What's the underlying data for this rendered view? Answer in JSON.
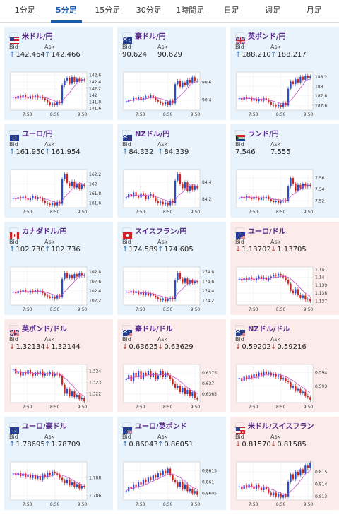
{
  "tabs": [
    {
      "label": "1分足",
      "active": false
    },
    {
      "label": "5分足",
      "active": true
    },
    {
      "label": "15分足",
      "active": false
    },
    {
      "label": "30分足",
      "active": false
    },
    {
      "label": "1時間足",
      "active": false
    },
    {
      "label": "日足",
      "active": false
    },
    {
      "label": "週足",
      "active": false
    },
    {
      "label": "月足",
      "active": false
    }
  ],
  "labels": {
    "bid": "Bid",
    "ask": "Ask"
  },
  "colors": {
    "up_bg": "#e9f3fb",
    "down_bg": "#fbeceb",
    "candle_up": "#2b4cc9",
    "candle_down": "#d1221f",
    "ma": "#c94fcb",
    "link": "#5a2a8a"
  },
  "pairs": [
    {
      "name": "米ドル/円",
      "flag": "us",
      "dir": "up",
      "bid": "142.464",
      "ask": "142.466",
      "bid_arrow": "up",
      "ask_arrow": "up",
      "chart_data": {
        "type": "candlestick",
        "x_ticks": [
          "7:50",
          "8:50",
          "9:50"
        ],
        "y_ticks": [
          "142.6",
          "142.4",
          "142.2",
          "142",
          "141.8",
          "141.6"
        ],
        "ylim": [
          141.55,
          142.7
        ],
        "closes": [
          141.95,
          141.9,
          141.98,
          141.92,
          142.0,
          141.94,
          141.9,
          141.97,
          141.93,
          141.99,
          141.92,
          141.96,
          141.91,
          141.85,
          141.78,
          141.72,
          141.75,
          141.7,
          141.8,
          141.76,
          142.3,
          142.45,
          142.52,
          142.35,
          142.55,
          142.4,
          142.5,
          142.44,
          142.48,
          142.46
        ]
      }
    },
    {
      "name": "豪ドル/円",
      "flag": "au",
      "dir": "up",
      "bid": "90.624",
      "ask": "90.629",
      "bid_arrow": "none",
      "ask_arrow": "none",
      "chart_data": {
        "type": "candlestick",
        "x_ticks": [
          "7:50",
          "8:50",
          "9:50"
        ],
        "y_ticks": [
          "90.6",
          "90.4"
        ],
        "ylim": [
          90.28,
          90.72
        ],
        "closes": [
          90.38,
          90.4,
          90.39,
          90.42,
          90.41,
          90.43,
          90.4,
          90.42,
          90.44,
          90.43,
          90.45,
          90.42,
          90.4,
          90.38,
          90.36,
          90.35,
          90.37,
          90.34,
          90.39,
          90.36,
          90.58,
          90.62,
          90.55,
          90.6,
          90.57,
          90.63,
          90.6,
          90.66,
          90.62,
          90.62
        ]
      }
    },
    {
      "name": "英ポンド/円",
      "flag": "gb",
      "dir": "up",
      "bid": "188.210",
      "ask": "188.217",
      "bid_arrow": "up",
      "ask_arrow": "up",
      "chart_data": {
        "type": "candlestick",
        "x_ticks": [
          "7:50",
          "8:50",
          "9:50"
        ],
        "y_ticks": [
          "188.2",
          "188",
          "187.8",
          "187.6"
        ],
        "ylim": [
          187.5,
          188.3
        ],
        "closes": [
          187.75,
          187.72,
          187.78,
          187.74,
          187.76,
          187.7,
          187.74,
          187.69,
          187.73,
          187.7,
          187.75,
          187.71,
          187.68,
          187.62,
          187.6,
          187.58,
          187.61,
          187.57,
          187.65,
          187.6,
          187.95,
          188.1,
          188.05,
          188.15,
          188.08,
          188.2,
          188.14,
          188.22,
          188.18,
          188.21
        ]
      }
    },
    {
      "name": "ユーロ/円",
      "flag": "eu",
      "dir": "up",
      "bid": "161.950",
      "ask": "161.954",
      "bid_arrow": "up",
      "ask_arrow": "up",
      "chart_data": {
        "type": "candlestick",
        "x_ticks": [
          "7:50",
          "8:50",
          "9:50"
        ],
        "y_ticks": [
          "162.2",
          "162",
          "161.8",
          "161.6"
        ],
        "ylim": [
          161.5,
          162.3
        ],
        "closes": [
          161.7,
          161.68,
          161.72,
          161.69,
          161.73,
          161.7,
          161.66,
          161.7,
          161.74,
          161.68,
          161.72,
          161.69,
          161.65,
          161.6,
          161.58,
          161.56,
          161.6,
          161.55,
          161.62,
          161.58,
          162.1,
          162.2,
          162.02,
          161.95,
          162.05,
          161.92,
          162.0,
          161.9,
          161.98,
          161.95
        ]
      }
    },
    {
      "name": "NZドル/円",
      "flag": "nz",
      "dir": "up",
      "bid": "84.332",
      "ask": "84.339",
      "bid_arrow": "up",
      "ask_arrow": "up",
      "chart_data": {
        "type": "candlestick",
        "x_ticks": [
          "7:50",
          "8:50",
          "9:50"
        ],
        "y_ticks": [
          "84.4",
          "84.2"
        ],
        "ylim": [
          84.1,
          84.55
        ],
        "closes": [
          84.22,
          84.26,
          84.23,
          84.28,
          84.24,
          84.22,
          84.27,
          84.25,
          84.2,
          84.24,
          84.26,
          84.22,
          84.18,
          84.15,
          84.17,
          84.14,
          84.16,
          84.13,
          84.18,
          84.15,
          84.42,
          84.5,
          84.38,
          84.33,
          84.4,
          84.3,
          84.36,
          84.31,
          84.35,
          84.33
        ]
      }
    },
    {
      "name": "ランド/円",
      "flag": "za",
      "dir": "up",
      "bid": "7.546",
      "ask": "7.555",
      "bid_arrow": "none",
      "ask_arrow": "none",
      "chart_data": {
        "type": "candlestick",
        "x_ticks": [
          "7:50",
          "8:50",
          "9:50"
        ],
        "y_ticks": [
          "7.56",
          "7.54",
          "7.52"
        ],
        "ylim": [
          7.508,
          7.575
        ],
        "closes": [
          7.525,
          7.527,
          7.524,
          7.528,
          7.526,
          7.523,
          7.527,
          7.525,
          7.522,
          7.526,
          7.524,
          7.527,
          7.523,
          7.52,
          7.518,
          7.52,
          7.517,
          7.519,
          7.521,
          7.52,
          7.545,
          7.56,
          7.55,
          7.538,
          7.548,
          7.542,
          7.55,
          7.545,
          7.548,
          7.546
        ]
      }
    },
    {
      "name": "カナダドル/円",
      "flag": "ca",
      "dir": "up",
      "bid": "102.730",
      "ask": "102.736",
      "bid_arrow": "up",
      "ask_arrow": "up",
      "chart_data": {
        "type": "candlestick",
        "x_ticks": [
          "7:50",
          "8:50",
          "9:50"
        ],
        "y_ticks": [
          "102.8",
          "102.6",
          "102.4",
          "102.2"
        ],
        "ylim": [
          102.1,
          102.9
        ],
        "closes": [
          102.38,
          102.35,
          102.4,
          102.37,
          102.42,
          102.39,
          102.36,
          102.4,
          102.38,
          102.41,
          102.37,
          102.4,
          102.35,
          102.3,
          102.28,
          102.25,
          102.28,
          102.24,
          102.3,
          102.27,
          102.65,
          102.78,
          102.68,
          102.72,
          102.66,
          102.75,
          102.7,
          102.77,
          102.72,
          102.73
        ]
      }
    },
    {
      "name": "スイスフラン/円",
      "flag": "ch",
      "dir": "up",
      "bid": "174.589",
      "ask": "174.605",
      "bid_arrow": "up",
      "ask_arrow": "up",
      "chart_data": {
        "type": "candlestick",
        "x_ticks": [
          "7:50",
          "8:50",
          "9:50"
        ],
        "y_ticks": [
          "174.8",
          "174.6",
          "174.4",
          "174.2"
        ],
        "ylim": [
          174.1,
          174.9
        ],
        "closes": [
          174.38,
          174.36,
          174.4,
          174.35,
          174.39,
          174.33,
          174.37,
          174.32,
          174.36,
          174.3,
          174.34,
          174.3,
          174.26,
          174.22,
          174.2,
          174.24,
          174.19,
          174.22,
          174.25,
          174.22,
          174.62,
          174.78,
          174.65,
          174.58,
          174.66,
          174.55,
          174.62,
          174.56,
          174.6,
          174.59
        ]
      }
    },
    {
      "name": "ユーロ/ドル",
      "flag": "eu-us",
      "dir": "down",
      "bid": "1.13702",
      "ask": "1.13705",
      "bid_arrow": "down",
      "ask_arrow": "down",
      "chart_data": {
        "type": "candlestick",
        "x_ticks": [
          "7:50",
          "8:50",
          "9:50"
        ],
        "y_ticks": [
          "1.141",
          "1.14",
          "1.139",
          "1.138",
          "1.137"
        ],
        "ylim": [
          1.1365,
          1.1413
        ],
        "closes": [
          1.1398,
          1.1396,
          1.1399,
          1.1397,
          1.14,
          1.1398,
          1.1396,
          1.1399,
          1.1401,
          1.1398,
          1.14,
          1.1397,
          1.1399,
          1.1401,
          1.1403,
          1.1402,
          1.1404,
          1.1402,
          1.14,
          1.1397,
          1.1392,
          1.1383,
          1.138,
          1.1385,
          1.1378,
          1.1374,
          1.1377,
          1.1372,
          1.1373,
          1.137
        ]
      }
    },
    {
      "name": "英ポンド/ドル",
      "flag": "gb-us",
      "dir": "down",
      "bid": "1.32134",
      "ask": "1.32144",
      "bid_arrow": "down",
      "ask_arrow": "down",
      "chart_data": {
        "type": "candlestick",
        "x_ticks": [
          "7:50",
          "8:50",
          "9:50"
        ],
        "y_ticks": [
          "1.324",
          "1.323",
          "1.322"
        ],
        "ylim": [
          1.3212,
          1.3246
        ],
        "closes": [
          1.3242,
          1.3238,
          1.324,
          1.3236,
          1.3239,
          1.3237,
          1.3241,
          1.3238,
          1.3236,
          1.3239,
          1.3237,
          1.324,
          1.3236,
          1.3238,
          1.3237,
          1.3239,
          1.3236,
          1.3238,
          1.3237,
          1.3236,
          1.3228,
          1.322,
          1.3224,
          1.3218,
          1.3222,
          1.3217,
          1.3219,
          1.3215,
          1.3216,
          1.3213
        ]
      }
    },
    {
      "name": "豪ドル/ドル",
      "flag": "au-us",
      "dir": "down",
      "bid": "0.63625",
      "ask": "0.63629",
      "bid_arrow": "down",
      "ask_arrow": "down",
      "chart_data": {
        "type": "candlestick",
        "x_ticks": [
          "7:50",
          "8:50",
          "9:50"
        ],
        "y_ticks": [
          "0.6375",
          "0.637",
          "0.6365"
        ],
        "ylim": [
          0.6361,
          0.6379
        ],
        "closes": [
          0.6372,
          0.6374,
          0.6371,
          0.6375,
          0.6373,
          0.6376,
          0.6372,
          0.6375,
          0.6374,
          0.6376,
          0.6373,
          0.6375,
          0.6372,
          0.6374,
          0.6376,
          0.6373,
          0.6375,
          0.6374,
          0.6372,
          0.637,
          0.6368,
          0.6369,
          0.6366,
          0.6368,
          0.6365,
          0.6367,
          0.6364,
          0.6366,
          0.6363,
          0.63625
        ]
      }
    },
    {
      "name": "NZドル/ドル",
      "flag": "nz-us",
      "dir": "down",
      "bid": "0.59202",
      "ask": "0.59216",
      "bid_arrow": "down",
      "ask_arrow": "down",
      "chart_data": {
        "type": "candlestick",
        "x_ticks": [
          "7:50",
          "8:50",
          "9:50"
        ],
        "y_ticks": [
          "0.594",
          "0.593"
        ],
        "ylim": [
          0.5918,
          0.5946
        ],
        "closes": [
          0.5936,
          0.5934,
          0.5937,
          0.5935,
          0.5938,
          0.5936,
          0.5939,
          0.5937,
          0.594,
          0.5938,
          0.5941,
          0.5939,
          0.594,
          0.5938,
          0.5939,
          0.5937,
          0.5938,
          0.5935,
          0.5936,
          0.5934,
          0.5933,
          0.5929,
          0.593,
          0.5927,
          0.5928,
          0.5925,
          0.5926,
          0.5923,
          0.5922,
          0.592
        ]
      }
    },
    {
      "name": "ユーロ/豪ドル",
      "flag": "eu-au",
      "dir": "up",
      "bid": "1.78695",
      "ask": "1.78709",
      "bid_arrow": "up",
      "ask_arrow": "up",
      "chart_data": {
        "type": "candlestick",
        "x_ticks": [
          "7:50",
          "8:50",
          "9:50"
        ],
        "y_ticks": [
          "1.788",
          "1.786"
        ],
        "ylim": [
          1.7855,
          1.7898
        ],
        "closes": [
          1.7885,
          1.7883,
          1.7886,
          1.7882,
          1.7885,
          1.7881,
          1.7884,
          1.788,
          1.7883,
          1.7879,
          1.7882,
          1.7878,
          1.7884,
          1.7881,
          1.7886,
          1.7883,
          1.7887,
          1.7885,
          1.7884,
          1.788,
          1.7877,
          1.7874,
          1.7878,
          1.7872,
          1.7875,
          1.787,
          1.7873,
          1.7868,
          1.7871,
          1.78695
        ]
      }
    },
    {
      "name": "ユーロ/英ポンド",
      "flag": "eu-gb",
      "dir": "up",
      "bid": "0.86043",
      "ask": "0.86051",
      "bid_arrow": "up",
      "ask_arrow": "up",
      "chart_data": {
        "type": "candlestick",
        "x_ticks": [
          "7:50",
          "8:50",
          "9:50"
        ],
        "y_ticks": [
          "0.8615",
          "0.861",
          "0.8605"
        ],
        "ylim": [
          0.8602,
          0.8619
        ],
        "closes": [
          0.8606,
          0.8608,
          0.8607,
          0.8609,
          0.8608,
          0.861,
          0.8609,
          0.8611,
          0.861,
          0.8612,
          0.8611,
          0.8613,
          0.8612,
          0.8614,
          0.8613,
          0.8615,
          0.8614,
          0.8616,
          0.8613,
          0.8611,
          0.861,
          0.8608,
          0.861,
          0.8607,
          0.8609,
          0.8606,
          0.8607,
          0.8605,
          0.8606,
          0.86043
        ]
      }
    },
    {
      "name": "米ドル/スイスフラン",
      "flag": "us-ch",
      "dir": "down",
      "bid": "0.81570",
      "ask": "0.81585",
      "bid_arrow": "down",
      "ask_arrow": "down",
      "chart_data": {
        "type": "candlestick",
        "x_ticks": [
          "7:50",
          "8:50",
          "9:50"
        ],
        "y_ticks": [
          "0.815",
          "0.814",
          "0.813"
        ],
        "ylim": [
          0.8127,
          0.8158
        ],
        "closes": [
          0.8138,
          0.8136,
          0.8139,
          0.8137,
          0.814,
          0.8138,
          0.8136,
          0.8139,
          0.8137,
          0.8135,
          0.8138,
          0.8136,
          0.8133,
          0.8131,
          0.8133,
          0.813,
          0.8132,
          0.8129,
          0.8131,
          0.813,
          0.8142,
          0.8148,
          0.8144,
          0.815,
          0.8147,
          0.8152,
          0.8149,
          0.8155,
          0.8153,
          0.8157
        ]
      }
    }
  ]
}
